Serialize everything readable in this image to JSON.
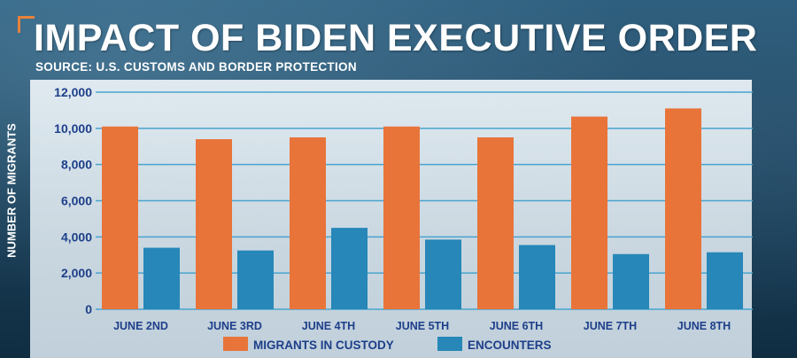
{
  "header": {
    "title": "IMPACT OF BIDEN EXECUTIVE ORDER",
    "source": "SOURCE: U.S. CUSTOMS AND BORDER PROTECTION"
  },
  "colors": {
    "migrants": "#e8743a",
    "encounters": "#2687b8",
    "grid": "#4aa3cf",
    "text": "#1d3f8a"
  },
  "chart_data": {
    "type": "bar",
    "title": "IMPACT OF BIDEN EXECUTIVE ORDER",
    "xlabel": "",
    "ylabel": "NUMBER OF MIGRANTS",
    "ylim": [
      0,
      12000
    ],
    "yticks": [
      "0",
      "2,000",
      "4,000",
      "6,000",
      "8,000",
      "10,000",
      "12,000"
    ],
    "ytick_values": [
      0,
      2000,
      4000,
      6000,
      8000,
      10000,
      12000
    ],
    "categories": [
      "JUNE 2ND",
      "JUNE 3RD",
      "JUNE 4TH",
      "JUNE 5TH",
      "JUNE 6TH",
      "JUNE 7TH",
      "JUNE 8TH"
    ],
    "series": [
      {
        "name": "MIGRANTS IN CUSTODY",
        "values": [
          10100,
          9400,
          9500,
          10100,
          9500,
          10650,
          11100
        ]
      },
      {
        "name": "ENCOUNTERS",
        "values": [
          3400,
          3250,
          4500,
          3850,
          3550,
          3050,
          3150
        ]
      }
    ],
    "legend_position": "bottom-center",
    "grid": true
  }
}
